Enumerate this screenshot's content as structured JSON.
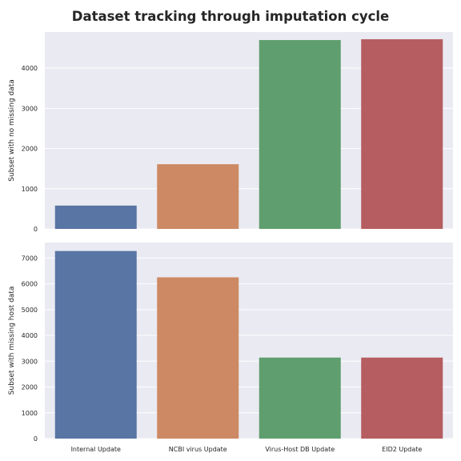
{
  "title": "Dataset tracking through imputation cycle",
  "chart_data": [
    {
      "type": "bar",
      "categories": [
        "Internal Update",
        "NCBI virus Update",
        "Virus-Host DB Update",
        "EID2 Update"
      ],
      "values": [
        580,
        1610,
        4700,
        4720
      ],
      "ylabel": "Subset with no missing data",
      "ylim": [
        0,
        4900
      ],
      "yticks": [
        0,
        1000,
        2000,
        3000,
        4000
      ],
      "show_x_tick_labels": false,
      "grid": true,
      "colors": [
        "#5875a4",
        "#cc8963",
        "#5f9e6e",
        "#b55d60"
      ],
      "background": "#eaeaf2"
    },
    {
      "type": "bar",
      "categories": [
        "Internal Update",
        "NCBI virus Update",
        "Virus-Host DB Update",
        "EID2 Update"
      ],
      "values": [
        7270,
        6250,
        3140,
        3140
      ],
      "ylabel": "Subset with missing host data",
      "ylim": [
        0,
        7600
      ],
      "yticks": [
        0,
        1000,
        2000,
        3000,
        4000,
        5000,
        6000,
        7000
      ],
      "show_x_tick_labels": true,
      "grid": true,
      "colors": [
        "#5875a4",
        "#cc8963",
        "#5f9e6e",
        "#b55d60"
      ],
      "background": "#eaeaf2"
    }
  ]
}
